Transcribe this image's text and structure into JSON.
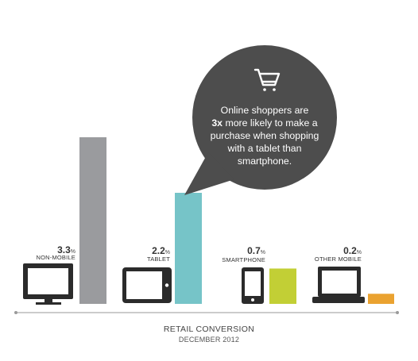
{
  "chart_data": {
    "type": "bar",
    "categories": [
      "NON-MOBILE",
      "TABLET",
      "SMARTPHONE",
      "OTHER MOBILE"
    ],
    "values": [
      3.3,
      2.2,
      0.7,
      0.2
    ],
    "value_labels": [
      "3.3",
      "2.2",
      "0.7",
      "0.2"
    ],
    "unit": "%",
    "title": "RETAIL CONVERSION",
    "subtitle": "DECEMBER 2012",
    "colors": [
      "#9a9b9e",
      "#76c4c8",
      "#c2cf35",
      "#eaa230"
    ],
    "device_icons": [
      "monitor-icon",
      "tablet-icon",
      "smartphone-icon",
      "laptop-icon"
    ],
    "grid": false,
    "legend": "none"
  },
  "callout": {
    "icon": "shopping-cart-icon",
    "line1": "Online shoppers are",
    "line2_bold": "3x",
    "line2_rest": " more likely to make a",
    "line3": "purchase when shopping",
    "line4": "with a tablet than",
    "line5": "smartphone.",
    "background": "#4d4d4d"
  }
}
